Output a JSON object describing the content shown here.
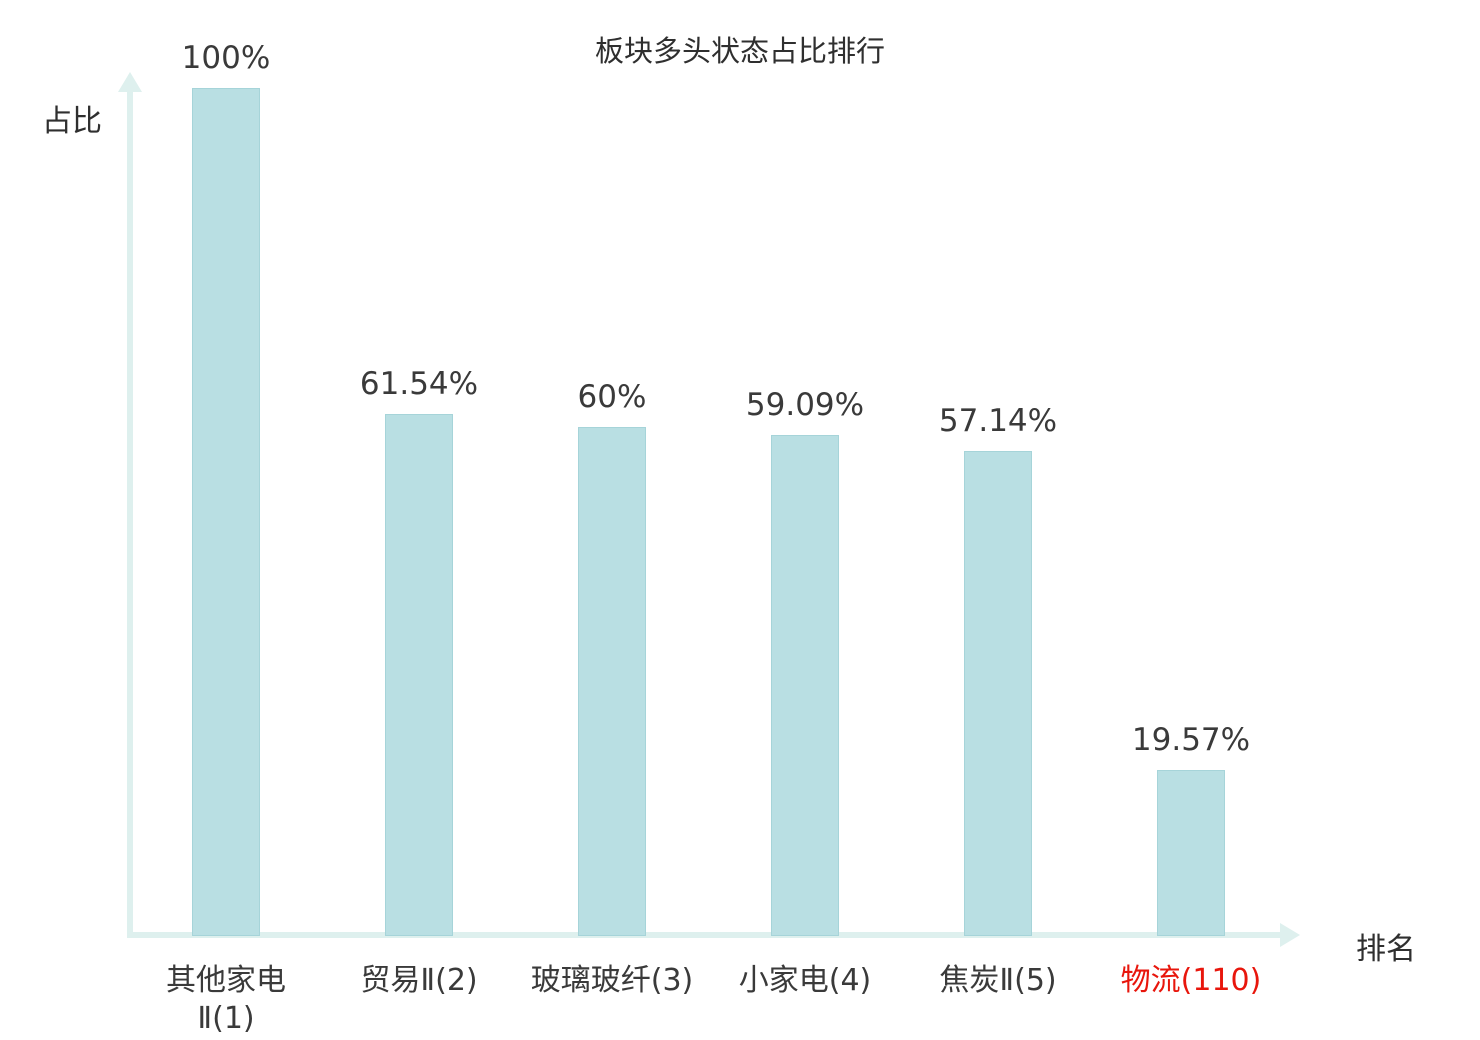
{
  "title": "板块多头状态占比排行",
  "ylabel": "占比",
  "xlabel": "排名",
  "chart_data": {
    "type": "bar",
    "title": "板块多头状态占比排行",
    "xlabel": "排名",
    "ylabel": "占比",
    "categories": [
      "其他家电Ⅱ(1)",
      "贸易Ⅱ(2)",
      "玻璃玻纤(3)",
      "小家电(4)",
      "焦炭Ⅱ(5)",
      "物流(110)"
    ],
    "values": [
      100,
      61.54,
      60,
      59.09,
      57.14,
      19.57
    ],
    "value_labels": [
      "100%",
      "61.54%",
      "60%",
      "59.09%",
      "57.14%",
      "19.57%"
    ],
    "highlight_index": 5,
    "ylim": [
      0,
      100
    ],
    "grid": false,
    "legend": false,
    "bar_color": "#b9dfe3",
    "bar_border_color": "#a6d4d9",
    "axis_color": "#def0ee",
    "label_color": "#3a3a3a",
    "highlight_color": "#e8160c"
  }
}
